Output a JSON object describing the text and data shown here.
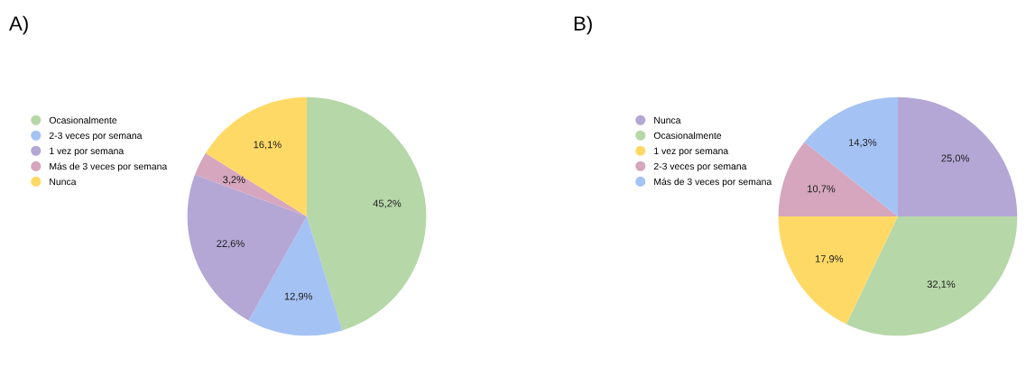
{
  "chart_data": [
    {
      "type": "pie",
      "title": "A)",
      "categories": [
        "Ocasionalmente",
        "2-3 veces por semana",
        "1 vez por semana",
        "Más de 3 veces por semana",
        "Nunca"
      ],
      "values": [
        45.2,
        12.9,
        22.6,
        3.2,
        16.1
      ],
      "value_labels": [
        "45,2%",
        "12,9%",
        "22,6%",
        "3,2%",
        "16,1%"
      ],
      "colors": [
        "#b6d7a8",
        "#a4c2f4",
        "#b4a7d6",
        "#d5a6bd",
        "#ffd966"
      ],
      "legend": "left"
    },
    {
      "type": "pie",
      "title": "B)",
      "categories": [
        "Nunca",
        "Ocasionalmente",
        "1 vez por semana",
        "2-3 veces por semana",
        "Más de 3 veces por semana"
      ],
      "values": [
        25.0,
        32.1,
        17.9,
        10.7,
        14.3
      ],
      "value_labels": [
        "25,0%",
        "32,1%",
        "17,9%",
        "10,7%",
        "14,3%"
      ],
      "colors": [
        "#b4a7d6",
        "#b6d7a8",
        "#ffd966",
        "#d5a6bd",
        "#a4c2f4"
      ],
      "legend": "left"
    }
  ]
}
